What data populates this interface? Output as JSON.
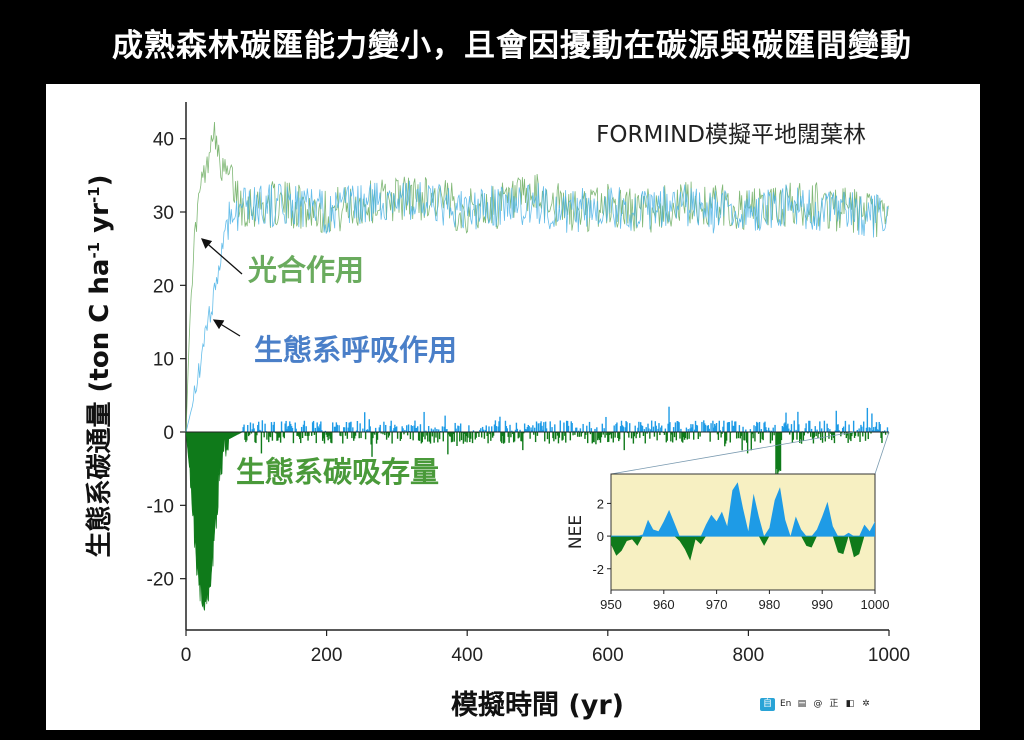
{
  "slide": {
    "title": "成熟森林碳匯能力變小，且會因擾動在碳源與碳匯間變動"
  },
  "chart_data": {
    "type": "line",
    "title": "FORMIND模擬平地闊葉林",
    "xlabel": "模擬時間 (yr)",
    "ylabel_parts": [
      "生態系碳通量 (ton C ha",
      "-1",
      " yr",
      "-1",
      ")"
    ],
    "xlim": [
      0,
      1000
    ],
    "ylim": [
      -27,
      45
    ],
    "x_ticks": [
      0,
      200,
      400,
      600,
      800,
      1000
    ],
    "y_ticks": [
      -20,
      -10,
      0,
      10,
      20,
      30,
      40
    ],
    "series": [
      {
        "name": "光合作用",
        "color": "#6aab5e",
        "points": [
          [
            0,
            0
          ],
          [
            5,
            14
          ],
          [
            10,
            24
          ],
          [
            15,
            29
          ],
          [
            20,
            33
          ],
          [
            25,
            35
          ],
          [
            30,
            36
          ],
          [
            35,
            40
          ],
          [
            40,
            42
          ],
          [
            45,
            38
          ],
          [
            50,
            36
          ],
          [
            60,
            35
          ],
          [
            70,
            33
          ],
          [
            80,
            31
          ],
          [
            100,
            31
          ],
          [
            150,
            31
          ],
          [
            200,
            30
          ],
          [
            250,
            31
          ],
          [
            300,
            32
          ],
          [
            350,
            32
          ],
          [
            400,
            30
          ],
          [
            450,
            31
          ],
          [
            500,
            32
          ],
          [
            550,
            30
          ],
          [
            600,
            31
          ],
          [
            650,
            30
          ],
          [
            700,
            31
          ],
          [
            750,
            31
          ],
          [
            800,
            30
          ],
          [
            850,
            31
          ],
          [
            900,
            31
          ],
          [
            950,
            30
          ],
          [
            1000,
            29
          ]
        ],
        "noise": 3.2
      },
      {
        "name": "生態系呼吸作用",
        "color": "#4bb3e6",
        "points": [
          [
            0,
            0
          ],
          [
            10,
            4
          ],
          [
            20,
            9
          ],
          [
            30,
            14
          ],
          [
            40,
            19
          ],
          [
            50,
            24
          ],
          [
            55,
            27
          ],
          [
            60,
            29
          ],
          [
            70,
            30
          ],
          [
            80,
            31
          ],
          [
            100,
            31
          ],
          [
            150,
            31
          ],
          [
            200,
            30
          ],
          [
            250,
            31
          ],
          [
            300,
            32
          ],
          [
            350,
            31
          ],
          [
            400,
            30
          ],
          [
            450,
            31
          ],
          [
            500,
            31
          ],
          [
            550,
            30
          ],
          [
            600,
            31
          ],
          [
            650,
            30
          ],
          [
            700,
            31
          ],
          [
            750,
            30
          ],
          [
            800,
            30
          ],
          [
            850,
            31
          ],
          [
            900,
            30
          ],
          [
            950,
            30
          ],
          [
            1000,
            29
          ]
        ],
        "noise": 3.0
      },
      {
        "name": "生態系碳吸存量",
        "color": "#0f7a1a",
        "positive_color": "#1e9be6",
        "points": [
          [
            0,
            0
          ],
          [
            5,
            -5
          ],
          [
            10,
            -12
          ],
          [
            15,
            -18
          ],
          [
            20,
            -22
          ],
          [
            25,
            -24
          ],
          [
            30,
            -23
          ],
          [
            35,
            -20
          ],
          [
            40,
            -15
          ],
          [
            45,
            -9
          ],
          [
            50,
            -4
          ],
          [
            55,
            -2
          ],
          [
            60,
            -1
          ],
          [
            70,
            -0.5
          ],
          [
            80,
            0
          ]
        ],
        "late_amplitude": 1.6
      }
    ],
    "annotations": {
      "photosynthesis": {
        "label": "光合作用",
        "color": "#6aab5e"
      },
      "respiration": {
        "label": "生態系呼吸作用",
        "color": "#4a7fc8"
      },
      "storage": {
        "label": "生態系碳吸存量",
        "color": "#4a9a3a"
      }
    },
    "inset": {
      "ylabel": "NEE",
      "xlim": [
        950,
        1000
      ],
      "ylim": [
        -3.3,
        3.8
      ],
      "x_ticks": [
        950,
        960,
        970,
        980,
        990,
        1000
      ],
      "y_ticks": [
        -2,
        0,
        2
      ],
      "background": "#f7f0c2",
      "positive_color": "#1e9be6",
      "negative_color": "#0f7a1a",
      "values": [
        [
          950,
          -0.5
        ],
        [
          951,
          -1.2
        ],
        [
          952,
          -0.9
        ],
        [
          953,
          -0.3
        ],
        [
          954,
          -0.2
        ],
        [
          955,
          -0.6
        ],
        [
          956,
          0.1
        ],
        [
          957,
          1.0
        ],
        [
          958,
          0.4
        ],
        [
          959,
          0.3
        ],
        [
          960,
          0.9
        ],
        [
          961,
          1.6
        ],
        [
          962,
          0.8
        ],
        [
          963,
          -0.3
        ],
        [
          964,
          -0.8
        ],
        [
          965,
          -1.5
        ],
        [
          966,
          -0.2
        ],
        [
          967,
          -0.5
        ],
        [
          968,
          0.7
        ],
        [
          969,
          1.3
        ],
        [
          970,
          0.9
        ],
        [
          971,
          1.5
        ],
        [
          972,
          0.6
        ],
        [
          973,
          2.8
        ],
        [
          974,
          3.3
        ],
        [
          975,
          1.7
        ],
        [
          976,
          0.3
        ],
        [
          977,
          2.6
        ],
        [
          978,
          1.2
        ],
        [
          979,
          -0.6
        ],
        [
          980,
          0.5
        ],
        [
          981,
          2.2
        ],
        [
          982,
          3.0
        ],
        [
          983,
          1.0
        ],
        [
          984,
          0.0
        ],
        [
          985,
          1.2
        ],
        [
          986,
          0.4
        ],
        [
          987,
          -0.6
        ],
        [
          988,
          -0.7
        ],
        [
          989,
          0.4
        ],
        [
          990,
          1.2
        ],
        [
          991,
          2.1
        ],
        [
          992,
          0.6
        ],
        [
          993,
          -1.0
        ],
        [
          994,
          -1.1
        ],
        [
          995,
          0.2
        ],
        [
          996,
          -1.3
        ],
        [
          997,
          -1.1
        ],
        [
          998,
          0.7
        ],
        [
          999,
          0.3
        ],
        [
          1000,
          0.9
        ]
      ]
    }
  },
  "toolbar": {
    "items": [
      "自",
      "En",
      "▤",
      "@",
      "正",
      "◧",
      "✲"
    ]
  }
}
